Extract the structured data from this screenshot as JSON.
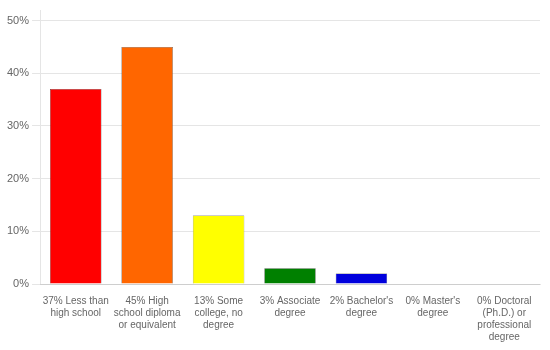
{
  "chart_data": {
    "type": "bar",
    "categories": [
      "37% Less than\nhigh school",
      "45% High\nschool diploma\nor equivalent",
      "13% Some\ncollege, no\ndegree",
      "3% Associate\ndegree",
      "2% Bachelor's\ndegree",
      "0% Master's\ndegree",
      "0% Doctoral\n(Ph.D.) or\nprofessional\ndegree"
    ],
    "values": [
      37,
      45,
      13,
      3,
      2,
      0,
      0
    ],
    "colors": [
      "#ff0000",
      "#ff6600",
      "#ffff00",
      "#008000",
      "#0000dd",
      "#9933cc",
      "#ff33ff"
    ],
    "ylim": [
      0,
      52
    ],
    "yticks": [
      {
        "value": 0,
        "label": "0%"
      },
      {
        "value": 10,
        "label": "10%"
      },
      {
        "value": 20,
        "label": "20%"
      },
      {
        "value": 30,
        "label": "30%"
      },
      {
        "value": 40,
        "label": "40%"
      },
      {
        "value": 50,
        "label": "50%"
      }
    ],
    "grid": true
  }
}
